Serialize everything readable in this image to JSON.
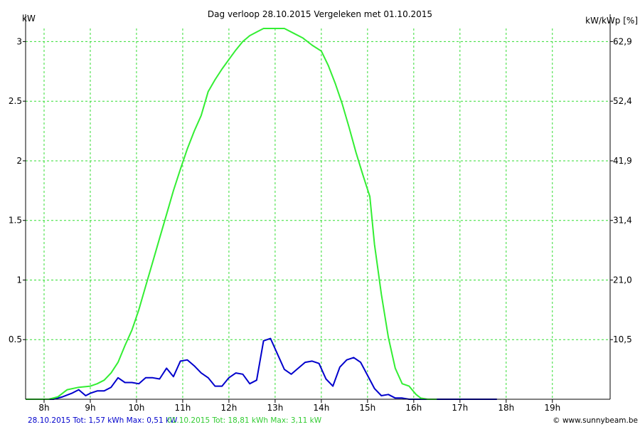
{
  "chart_data": {
    "type": "line",
    "title": "Dag  verloop 28.10.2015   Vergeleken met 01.10.2015",
    "ylabel_left": "kW",
    "ylabel_right": "kW/kWp [%]",
    "x_ticks": [
      "8h",
      "9h",
      "10h",
      "11h",
      "12h",
      "13h",
      "14h",
      "15h",
      "16h",
      "17h",
      "18h",
      "19h"
    ],
    "x_range": [
      7.6,
      20.25
    ],
    "y_ticks": [
      "0.5",
      "1",
      "1.5",
      "2",
      "2.5",
      "3"
    ],
    "y_tick_values": [
      0.5,
      1,
      1.5,
      2,
      2.5,
      3
    ],
    "y_ticks_right": [
      "10,5",
      "21,0",
      "31,4",
      "41,9",
      "52,4",
      "62,9"
    ],
    "ylim": [
      0,
      3.11
    ],
    "grid": true,
    "series": [
      {
        "color": "#0000cc",
        "points": [
          [
            7.6,
            0
          ],
          [
            8.2,
            0
          ],
          [
            8.4,
            0.02
          ],
          [
            8.6,
            0.05
          ],
          [
            8.75,
            0.08
          ],
          [
            8.9,
            0.03
          ],
          [
            9.0,
            0.05
          ],
          [
            9.15,
            0.07
          ],
          [
            9.3,
            0.07
          ],
          [
            9.45,
            0.1
          ],
          [
            9.6,
            0.18
          ],
          [
            9.75,
            0.14
          ],
          [
            9.9,
            0.14
          ],
          [
            10.05,
            0.13
          ],
          [
            10.2,
            0.18
          ],
          [
            10.35,
            0.18
          ],
          [
            10.5,
            0.17
          ],
          [
            10.65,
            0.26
          ],
          [
            10.8,
            0.19
          ],
          [
            10.95,
            0.32
          ],
          [
            11.1,
            0.33
          ],
          [
            11.25,
            0.28
          ],
          [
            11.4,
            0.22
          ],
          [
            11.55,
            0.18
          ],
          [
            11.7,
            0.11
          ],
          [
            11.85,
            0.11
          ],
          [
            12.0,
            0.18
          ],
          [
            12.15,
            0.22
          ],
          [
            12.3,
            0.21
          ],
          [
            12.45,
            0.13
          ],
          [
            12.6,
            0.16
          ],
          [
            12.75,
            0.49
          ],
          [
            12.9,
            0.51
          ],
          [
            13.05,
            0.38
          ],
          [
            13.2,
            0.25
          ],
          [
            13.35,
            0.21
          ],
          [
            13.5,
            0.26
          ],
          [
            13.65,
            0.31
          ],
          [
            13.8,
            0.32
          ],
          [
            13.95,
            0.3
          ],
          [
            14.1,
            0.17
          ],
          [
            14.25,
            0.11
          ],
          [
            14.4,
            0.27
          ],
          [
            14.55,
            0.33
          ],
          [
            14.7,
            0.35
          ],
          [
            14.85,
            0.31
          ],
          [
            15.0,
            0.2
          ],
          [
            15.15,
            0.09
          ],
          [
            15.3,
            0.03
          ],
          [
            15.45,
            0.04
          ],
          [
            15.6,
            0.01
          ],
          [
            15.75,
            0.01
          ],
          [
            15.9,
            0
          ],
          [
            16.5,
            0
          ],
          [
            17.0,
            0
          ],
          [
            17.8,
            0
          ]
        ]
      },
      {
        "color": "#33ee33",
        "points": [
          [
            7.6,
            0
          ],
          [
            8.1,
            0
          ],
          [
            8.3,
            0.02
          ],
          [
            8.5,
            0.08
          ],
          [
            8.75,
            0.1
          ],
          [
            9.0,
            0.11
          ],
          [
            9.15,
            0.13
          ],
          [
            9.3,
            0.16
          ],
          [
            9.45,
            0.22
          ],
          [
            9.6,
            0.31
          ],
          [
            9.75,
            0.45
          ],
          [
            9.9,
            0.58
          ],
          [
            10.05,
            0.75
          ],
          [
            10.2,
            0.95
          ],
          [
            10.35,
            1.15
          ],
          [
            10.5,
            1.35
          ],
          [
            10.65,
            1.55
          ],
          [
            10.8,
            1.75
          ],
          [
            10.95,
            1.93
          ],
          [
            11.1,
            2.1
          ],
          [
            11.25,
            2.25
          ],
          [
            11.4,
            2.38
          ],
          [
            11.55,
            2.58
          ],
          [
            11.7,
            2.68
          ],
          [
            11.85,
            2.77
          ],
          [
            12.0,
            2.85
          ],
          [
            12.15,
            2.93
          ],
          [
            12.3,
            3.0
          ],
          [
            12.45,
            3.05
          ],
          [
            12.6,
            3.08
          ],
          [
            12.75,
            3.11
          ],
          [
            13.0,
            3.11
          ],
          [
            13.2,
            3.11
          ],
          [
            13.4,
            3.07
          ],
          [
            13.6,
            3.03
          ],
          [
            13.8,
            2.97
          ],
          [
            14.0,
            2.92
          ],
          [
            14.15,
            2.8
          ],
          [
            14.3,
            2.65
          ],
          [
            14.45,
            2.48
          ],
          [
            14.6,
            2.28
          ],
          [
            14.75,
            2.07
          ],
          [
            14.9,
            1.88
          ],
          [
            15.05,
            1.7
          ],
          [
            15.15,
            1.3
          ],
          [
            15.3,
            0.88
          ],
          [
            15.45,
            0.52
          ],
          [
            15.6,
            0.26
          ],
          [
            15.75,
            0.13
          ],
          [
            15.9,
            0.11
          ],
          [
            16.05,
            0.04
          ],
          [
            16.15,
            0.01
          ],
          [
            16.3,
            0
          ],
          [
            16.5,
            0
          ]
        ]
      }
    ]
  },
  "footer": {
    "blue_text": "28.10.2015 Tot: 1,57 kWh Max: 0,51 kW",
    "green_text": "01.10.2015 Tot: 18,81 kWh Max: 3,11 kW",
    "copyright_text": "© www.sunnybeam.be"
  },
  "colors": {
    "grid": "#33dd33",
    "axis": "#000000",
    "footer_blue": "#0000cc",
    "footer_green": "#33cc33"
  }
}
